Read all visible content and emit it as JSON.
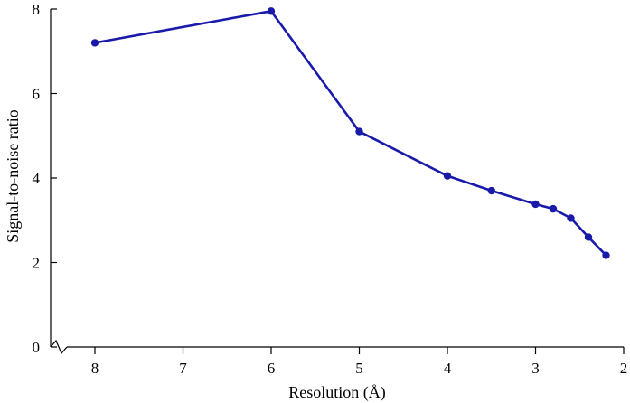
{
  "chart_data": {
    "type": "line",
    "title": "",
    "xlabel": "Resolution (Å)",
    "ylabel": "Signal-to-noise ratio",
    "x_axis": {
      "range": [
        8.4,
        2.0
      ],
      "reversed": true,
      "ticks": [
        8,
        7,
        6,
        5,
        4,
        3,
        2
      ]
    },
    "y_axis": {
      "range": [
        0,
        8
      ],
      "ticks": [
        0,
        2,
        4,
        6,
        8
      ],
      "broken_axis": true
    },
    "grid": false,
    "legend": "none",
    "series": [
      {
        "color": "#1a1aaa",
        "x": [
          8,
          6,
          5,
          4,
          3.5,
          3,
          2.8,
          2.6,
          2.4,
          2.2
        ],
        "y": [
          7.2,
          7.95,
          5.1,
          4.05,
          3.7,
          3.38,
          3.27,
          3.05,
          2.6,
          2.17
        ]
      }
    ]
  }
}
